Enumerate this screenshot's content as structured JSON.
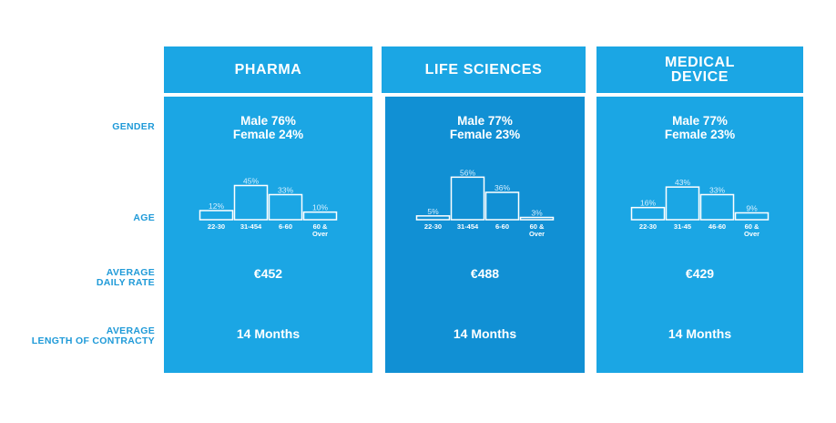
{
  "row_labels": {
    "gender": "GENDER",
    "age": "AGE",
    "rate": [
      "AVERAGE",
      "DAILY RATE"
    ],
    "length": [
      "AVERAGE",
      "LENGTH OF CONTRACTY"
    ]
  },
  "colors": {
    "header_bg": "#1ba6e4",
    "body_bg_left": "#1ba6e4",
    "body_bg_center": "#1190d4",
    "body_bg_right": "#1ba6e4",
    "label_color": "#1f9ad8",
    "text": "#ffffff"
  },
  "columns": [
    {
      "title_lines": [
        "PHARMA"
      ],
      "male": "Male 76%",
      "female": "Female 24%",
      "rate": "€452",
      "length": "14 Months"
    },
    {
      "title_lines": [
        "LIFE SCIENCES"
      ],
      "male": "Male 77%",
      "female": "Female 23%",
      "rate": "€488",
      "length": "14 Months"
    },
    {
      "title_lines": [
        "MEDICAL",
        "DEVICE"
      ],
      "male": "Male 77%",
      "female": "Female 23%",
      "rate": "€429",
      "length": "14 Months"
    }
  ],
  "chart_data": [
    {
      "type": "bar",
      "categories": [
        "22-30",
        "31-454",
        "6-60",
        "60 & Over"
      ],
      "values": [
        12,
        45,
        33,
        10
      ],
      "value_labels": [
        "12%",
        "45%",
        "33%",
        "10%"
      ],
      "ylim": [
        0,
        60
      ]
    },
    {
      "type": "bar",
      "categories": [
        "22-30",
        "31-454",
        "6-60",
        "60 & Over"
      ],
      "values": [
        5,
        56,
        36,
        3
      ],
      "value_labels": [
        "5%",
        "56%",
        "36%",
        "3%"
      ],
      "ylim": [
        0,
        60
      ]
    },
    {
      "type": "bar",
      "categories": [
        "22-30",
        "31-45",
        "46-60",
        "60 & Over"
      ],
      "values": [
        16,
        43,
        33,
        9
      ],
      "value_labels": [
        "16%",
        "43%",
        "33%",
        "9%"
      ],
      "ylim": [
        0,
        60
      ]
    }
  ]
}
